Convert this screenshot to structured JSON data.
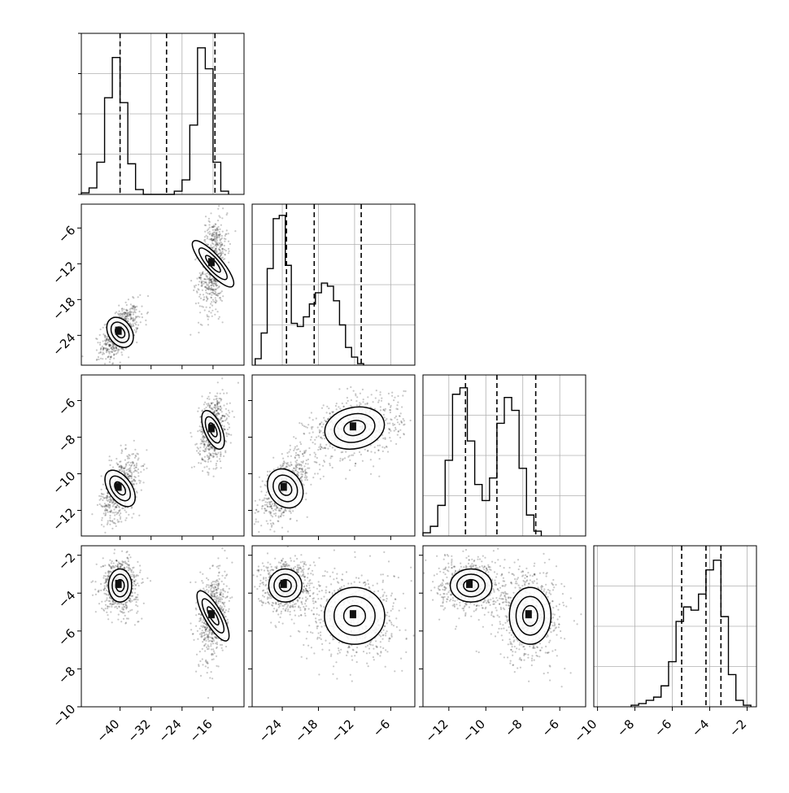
{
  "chart_data": [
    {
      "type": "histogram",
      "panel": "1,1",
      "x_range": [
        -50,
        -8
      ],
      "x_ticks": [
        -40,
        -32,
        -24,
        -16
      ],
      "bins": [
        {
          "x": -49,
          "y": 0.01
        },
        {
          "x": -47,
          "y": 0.04
        },
        {
          "x": -45,
          "y": 0.2
        },
        {
          "x": -43,
          "y": 0.6
        },
        {
          "x": -41,
          "y": 0.85
        },
        {
          "x": -39,
          "y": 0.57
        },
        {
          "x": -37,
          "y": 0.19
        },
        {
          "x": -35,
          "y": 0.03
        },
        {
          "x": -33,
          "y": 0.0
        },
        {
          "x": -31,
          "y": 0.0
        },
        {
          "x": -29,
          "y": 0.0
        },
        {
          "x": -27,
          "y": 0.0
        },
        {
          "x": -25,
          "y": 0.02
        },
        {
          "x": -23,
          "y": 0.09
        },
        {
          "x": -21,
          "y": 0.43
        },
        {
          "x": -19,
          "y": 0.91
        },
        {
          "x": -17,
          "y": 0.78
        },
        {
          "x": -15,
          "y": 0.2
        },
        {
          "x": -13,
          "y": 0.02
        }
      ],
      "quantiles": [
        -40,
        -28,
        -15.5
      ]
    },
    {
      "type": "histogram",
      "panel": "2,2",
      "x_range": [
        -29,
        -2
      ],
      "x_ticks": [
        -24,
        -18,
        -12,
        -6
      ],
      "bins": [
        {
          "x": -28,
          "y": 0.04
        },
        {
          "x": -27,
          "y": 0.2
        },
        {
          "x": -26,
          "y": 0.6
        },
        {
          "x": -25,
          "y": 0.91
        },
        {
          "x": -24,
          "y": 0.93
        },
        {
          "x": -23,
          "y": 0.62
        },
        {
          "x": -22,
          "y": 0.26
        },
        {
          "x": -21,
          "y": 0.24
        },
        {
          "x": -20,
          "y": 0.3
        },
        {
          "x": -19,
          "y": 0.38
        },
        {
          "x": -18,
          "y": 0.45
        },
        {
          "x": -17,
          "y": 0.51
        },
        {
          "x": -16,
          "y": 0.49
        },
        {
          "x": -15,
          "y": 0.4
        },
        {
          "x": -14,
          "y": 0.25
        },
        {
          "x": -13,
          "y": 0.11
        },
        {
          "x": -12,
          "y": 0.05
        },
        {
          "x": -11,
          "y": 0.01
        }
      ],
      "quantiles": [
        -23.3,
        -18.7,
        -10.9
      ]
    },
    {
      "type": "histogram",
      "panel": "3,3",
      "x_range": [
        -13.4,
        -4.6
      ],
      "x_ticks": [
        -12,
        -10,
        -8,
        -6
      ],
      "bins": [
        {
          "x": -13.2,
          "y": 0.02
        },
        {
          "x": -12.8,
          "y": 0.06
        },
        {
          "x": -12.4,
          "y": 0.19
        },
        {
          "x": -12.0,
          "y": 0.47
        },
        {
          "x": -11.6,
          "y": 0.88
        },
        {
          "x": -11.2,
          "y": 0.92
        },
        {
          "x": -10.8,
          "y": 0.59
        },
        {
          "x": -10.4,
          "y": 0.32
        },
        {
          "x": -10.0,
          "y": 0.22
        },
        {
          "x": -9.6,
          "y": 0.36
        },
        {
          "x": -9.2,
          "y": 0.7
        },
        {
          "x": -8.8,
          "y": 0.86
        },
        {
          "x": -8.4,
          "y": 0.78
        },
        {
          "x": -8.0,
          "y": 0.42
        },
        {
          "x": -7.6,
          "y": 0.13
        },
        {
          "x": -7.2,
          "y": 0.03
        }
      ],
      "quantiles": [
        -11.1,
        -9.4,
        -7.3
      ]
    },
    {
      "type": "histogram",
      "panel": "4,4",
      "x_range": [
        -10.2,
        -1.5
      ],
      "x_ticks": [
        -10,
        -8,
        -6,
        -4,
        -2
      ],
      "bins": [
        {
          "x": -8.0,
          "y": 0.01
        },
        {
          "x": -7.6,
          "y": 0.02
        },
        {
          "x": -7.2,
          "y": 0.04
        },
        {
          "x": -6.8,
          "y": 0.06
        },
        {
          "x": -6.4,
          "y": 0.13
        },
        {
          "x": -6.0,
          "y": 0.28
        },
        {
          "x": -5.6,
          "y": 0.53
        },
        {
          "x": -5.2,
          "y": 0.62
        },
        {
          "x": -4.8,
          "y": 0.6
        },
        {
          "x": -4.4,
          "y": 0.7
        },
        {
          "x": -4.0,
          "y": 0.85
        },
        {
          "x": -3.6,
          "y": 0.91
        },
        {
          "x": -3.2,
          "y": 0.56
        },
        {
          "x": -2.8,
          "y": 0.2
        },
        {
          "x": -2.4,
          "y": 0.04
        },
        {
          "x": -2.0,
          "y": 0.01
        }
      ],
      "quantiles": [
        -5.5,
        -4.2,
        -3.4
      ]
    },
    {
      "type": "scatter",
      "panel": "2,1",
      "x_range": [
        -50,
        -8
      ],
      "y_range": [
        -29,
        -2
      ],
      "x_ticks": [
        -40,
        -32,
        -24,
        -16
      ],
      "y_ticks": [
        -24,
        -18,
        -12,
        -6
      ],
      "clusters": [
        {
          "center": [
            -40,
            -23.5
          ],
          "sx": 2.4,
          "sy": 2.2,
          "rho": 0.55
        },
        {
          "center": [
            -16,
            -12
          ],
          "sx": 1.8,
          "sy": 4.0,
          "rho": 0.3
        }
      ]
    },
    {
      "type": "scatter",
      "panel": "3,1",
      "x_range": [
        -50,
        -8
      ],
      "y_range": [
        -13.4,
        -4.6
      ],
      "x_ticks": [
        -40,
        -32,
        -24,
        -16
      ],
      "y_ticks": [
        -12,
        -10,
        -8,
        -6
      ],
      "clusters": [
        {
          "center": [
            -40,
            -10.8
          ],
          "sx": 2.4,
          "sy": 0.9,
          "rho": 0.45
        },
        {
          "center": [
            -16,
            -7.6
          ],
          "sx": 1.8,
          "sy": 0.9,
          "rho": 0.2
        }
      ]
    },
    {
      "type": "scatter",
      "panel": "3,2",
      "x_range": [
        -29,
        -2
      ],
      "y_range": [
        -13.4,
        -4.6
      ],
      "x_ticks": [
        -24,
        -18,
        -12,
        -6
      ],
      "y_ticks": [
        -12,
        -10,
        -8,
        -6
      ],
      "clusters": [
        {
          "center": [
            -23.5,
            -10.8
          ],
          "sx": 2.2,
          "sy": 0.9,
          "rho": 0.6
        },
        {
          "center": [
            -12,
            -7.5
          ],
          "sx": 4.0,
          "sy": 0.9,
          "rho": 0.35
        }
      ]
    },
    {
      "type": "scatter",
      "panel": "4,1",
      "x_range": [
        -50,
        -8
      ],
      "y_range": [
        -10,
        -1.5
      ],
      "x_ticks": [
        -40,
        -32,
        -24,
        -16
      ],
      "y_ticks": [
        -10,
        -8,
        -6,
        -4,
        -2
      ],
      "clusters": [
        {
          "center": [
            -40,
            -3.6
          ],
          "sx": 2.4,
          "sy": 0.7,
          "rho": 0.0
        },
        {
          "center": [
            -16,
            -5.2
          ],
          "sx": 1.8,
          "sy": 1.2,
          "rho": 0.2
        }
      ]
    },
    {
      "type": "scatter",
      "panel": "4,2",
      "x_range": [
        -29,
        -2
      ],
      "y_range": [
        -10,
        -1.5
      ],
      "x_ticks": [
        -24,
        -18,
        -12,
        -6
      ],
      "y_ticks": [
        -10,
        -8,
        -6,
        -4,
        -2
      ],
      "clusters": [
        {
          "center": [
            -23.5,
            -3.6
          ],
          "sx": 2.2,
          "sy": 0.7,
          "rho": 0.0
        },
        {
          "center": [
            -12,
            -5.2
          ],
          "sx": 4.0,
          "sy": 1.2,
          "rho": 0.0
        }
      ]
    },
    {
      "type": "scatter",
      "panel": "4,3",
      "x_range": [
        -13.4,
        -4.6
      ],
      "y_range": [
        -10,
        -1.5
      ],
      "x_ticks": [
        -12,
        -10,
        -8,
        -6
      ],
      "y_ticks": [
        -10,
        -8,
        -6,
        -4,
        -2
      ],
      "clusters": [
        {
          "center": [
            -10.8,
            -3.6
          ],
          "sx": 0.9,
          "sy": 0.7,
          "rho": 0.0
        },
        {
          "center": [
            -7.6,
            -5.2
          ],
          "sx": 0.9,
          "sy": 1.2,
          "rho": 0.0
        }
      ]
    }
  ]
}
